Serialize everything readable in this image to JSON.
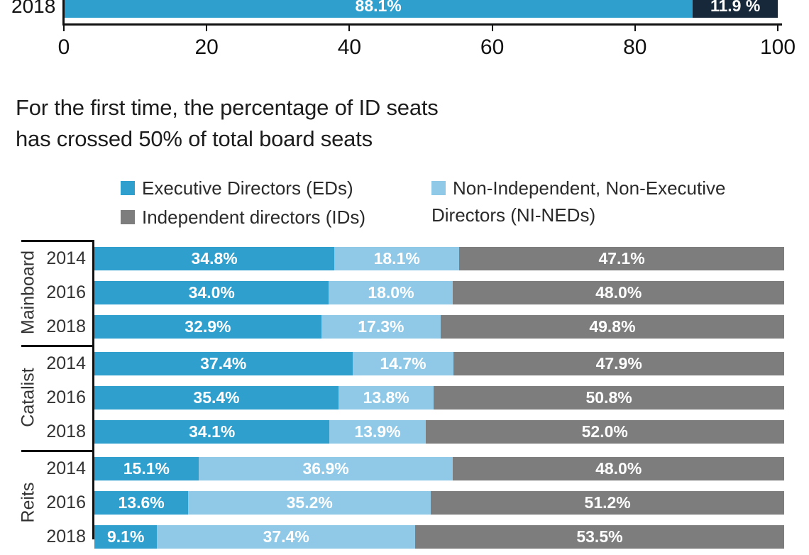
{
  "top_chart": {
    "row_label": "2018",
    "axis_ticks": [
      "0",
      "20",
      "40",
      "60",
      "80",
      "100"
    ],
    "segments": [
      {
        "name": "blue",
        "value": 88.1,
        "label": "88.1%",
        "color": "#2f9fce"
      },
      {
        "name": "dark",
        "value": 11.9,
        "label": "11.9 %",
        "color": "#16283a"
      }
    ]
  },
  "title": {
    "line1": "For the first time, the percentage of ID seats",
    "line2": "has crossed 50% of total board seats"
  },
  "legend": {
    "items": [
      {
        "label": "Executive Directors (EDs)",
        "color": "#2f9fce"
      },
      {
        "label": "Independent directors (IDs)",
        "color": "#7d7d7d"
      },
      {
        "label": "Non-Independent, Non-Executive Directors (NI-NEDs)",
        "color": "#8fc9e7"
      }
    ]
  },
  "chart_data": {
    "type": "bar",
    "orientation": "horizontal",
    "stacked": true,
    "unit": "%",
    "x_range": [
      0,
      100
    ],
    "series_order": [
      "Executive Directors (EDs)",
      "Non-Independent, Non-Executive Directors (NI-NEDs)",
      "Independent directors (IDs)"
    ],
    "colors": {
      "eds": "#2f9fce",
      "ni_neds": "#8fc9e7",
      "ids": "#7d7d7d"
    },
    "groups": [
      {
        "name": "Mainboard",
        "rows": [
          {
            "year": "2014",
            "eds": 34.8,
            "ni_neds": 18.1,
            "ids": 47.1
          },
          {
            "year": "2016",
            "eds": 34.0,
            "ni_neds": 18.0,
            "ids": 48.0
          },
          {
            "year": "2018",
            "eds": 32.9,
            "ni_neds": 17.3,
            "ids": 49.8
          }
        ]
      },
      {
        "name": "Catalist",
        "rows": [
          {
            "year": "2014",
            "eds": 37.4,
            "ni_neds": 14.7,
            "ids": 47.9
          },
          {
            "year": "2016",
            "eds": 35.4,
            "ni_neds": 13.8,
            "ids": 50.8
          },
          {
            "year": "2018",
            "eds": 34.1,
            "ni_neds": 13.9,
            "ids": 52.0
          }
        ]
      },
      {
        "name": "Reits",
        "rows": [
          {
            "year": "2014",
            "eds": 15.1,
            "ni_neds": 36.9,
            "ids": 48.0
          },
          {
            "year": "2016",
            "eds": 13.6,
            "ni_neds": 35.2,
            "ids": 51.2
          },
          {
            "year": "2018",
            "eds": 9.1,
            "ni_neds": 37.4,
            "ids": 53.5
          }
        ]
      }
    ]
  }
}
